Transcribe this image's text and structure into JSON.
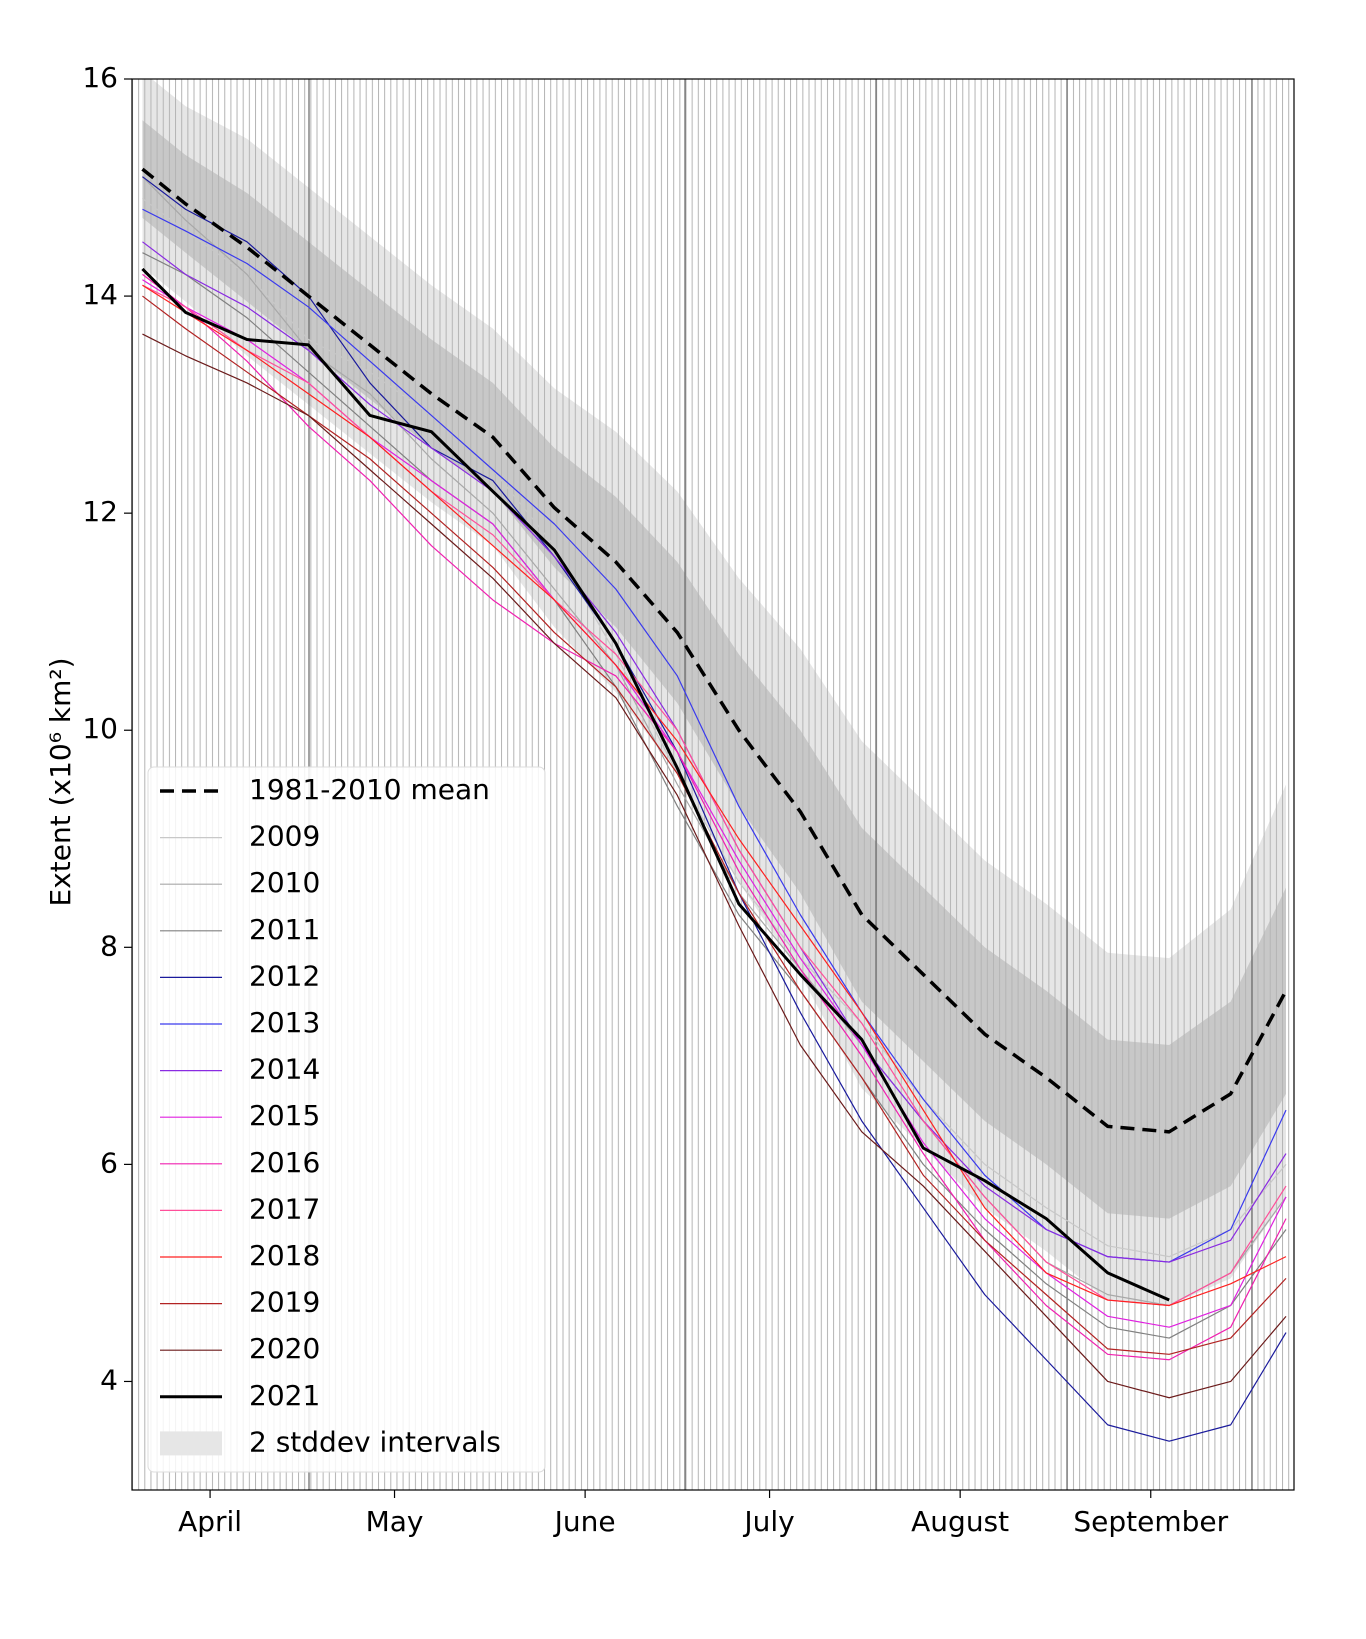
{
  "chart_data": {
    "type": "line",
    "y_label": "Extent (x10⁶ km²)",
    "x": [
      3,
      10,
      20,
      30,
      40,
      50,
      60,
      70,
      80,
      90,
      100,
      110,
      120,
      130,
      140,
      150,
      160,
      170,
      180,
      189
    ],
    "xlim": [
      1.3,
      190.3
    ],
    "xticks": [
      {
        "value": 14,
        "label": "April"
      },
      {
        "value": 44,
        "label": "May"
      },
      {
        "value": 75,
        "label": "June"
      },
      {
        "value": 105,
        "label": "July"
      },
      {
        "value": 136,
        "label": "August"
      },
      {
        "value": 167,
        "label": "September"
      }
    ],
    "ylim": [
      3.0,
      16
    ],
    "yticks": [
      4,
      6,
      8,
      10,
      12,
      14,
      16
    ],
    "legend": "lower left",
    "series": [
      {
        "name": "1981-2010 mean",
        "color": "#000000",
        "dash": true,
        "linewidth": 3.5,
        "values": [
          15.17,
          14.85,
          14.45,
          14.0,
          13.55,
          13.1,
          12.7,
          12.05,
          11.55,
          10.9,
          10.0,
          9.25,
          8.3,
          7.75,
          7.2,
          6.8,
          6.35,
          6.3,
          6.65,
          7.6
        ]
      },
      {
        "name": "2009",
        "color": "#c8c8c8",
        "linewidth": 1.2,
        "values": [
          14.9,
          14.6,
          14.2,
          13.6,
          13.3,
          12.9,
          12.4,
          11.7,
          10.7,
          9.6,
          8.6,
          7.9,
          7.3,
          6.6,
          6.0,
          5.6,
          5.25,
          5.15,
          5.4,
          6.0
        ]
      },
      {
        "name": "2010",
        "color": "#a8a8a8",
        "linewidth": 1.2,
        "values": [
          15.1,
          14.7,
          14.2,
          13.5,
          13.1,
          12.5,
          12.0,
          11.3,
          10.6,
          9.5,
          8.5,
          7.8,
          7.1,
          6.4,
          5.7,
          5.1,
          4.8,
          4.7,
          5.0,
          5.7
        ]
      },
      {
        "name": "2011",
        "color": "#808080",
        "linewidth": 1.2,
        "values": [
          14.4,
          14.2,
          13.8,
          13.3,
          12.8,
          12.3,
          11.9,
          11.2,
          10.4,
          9.3,
          8.3,
          7.6,
          6.8,
          6.0,
          5.4,
          4.9,
          4.5,
          4.4,
          4.7,
          5.4
        ]
      },
      {
        "name": "2012",
        "color": "#1a1a9c",
        "linewidth": 1.2,
        "values": [
          15.1,
          14.8,
          14.5,
          14.0,
          13.2,
          12.6,
          12.3,
          11.6,
          10.8,
          9.8,
          8.5,
          7.4,
          6.4,
          5.6,
          4.8,
          4.2,
          3.6,
          3.45,
          3.6,
          4.45
        ]
      },
      {
        "name": "2013",
        "color": "#3a3aee",
        "linewidth": 1.2,
        "values": [
          14.8,
          14.6,
          14.3,
          13.9,
          13.4,
          12.9,
          12.4,
          11.9,
          11.3,
          10.5,
          9.3,
          8.3,
          7.4,
          6.6,
          5.9,
          5.4,
          5.15,
          5.1,
          5.4,
          6.5
        ]
      },
      {
        "name": "2014",
        "color": "#8a2be2",
        "linewidth": 1.2,
        "values": [
          14.5,
          14.2,
          13.9,
          13.5,
          13.0,
          12.6,
          12.2,
          11.6,
          10.9,
          10.0,
          8.9,
          8.0,
          7.1,
          6.4,
          5.8,
          5.4,
          5.15,
          5.1,
          5.3,
          6.1
        ]
      },
      {
        "name": "2015",
        "color": "#e020e0",
        "linewidth": 1.2,
        "values": [
          14.15,
          13.9,
          13.6,
          13.2,
          12.7,
          12.3,
          11.9,
          11.2,
          10.6,
          9.8,
          8.8,
          7.9,
          7.1,
          6.2,
          5.5,
          5.0,
          4.6,
          4.5,
          4.7,
          5.7
        ]
      },
      {
        "name": "2016",
        "color": "#f020b0",
        "linewidth": 1.2,
        "values": [
          14.2,
          13.9,
          13.4,
          12.8,
          12.3,
          11.7,
          11.2,
          10.8,
          10.5,
          9.8,
          8.7,
          7.8,
          7.0,
          6.1,
          5.3,
          4.7,
          4.25,
          4.2,
          4.5,
          5.5
        ]
      },
      {
        "name": "2017",
        "color": "#ff4f9a",
        "linewidth": 1.2,
        "values": [
          14.1,
          13.9,
          13.5,
          13.2,
          12.7,
          12.2,
          11.8,
          11.2,
          10.7,
          10.0,
          8.9,
          8.0,
          7.3,
          6.4,
          5.7,
          5.1,
          4.75,
          4.7,
          5.0,
          5.8
        ]
      },
      {
        "name": "2018",
        "color": "#ff2020",
        "linewidth": 1.2,
        "values": [
          14.1,
          13.85,
          13.5,
          13.1,
          12.7,
          12.2,
          11.7,
          11.2,
          10.6,
          9.9,
          9.0,
          8.2,
          7.4,
          6.5,
          5.6,
          5.0,
          4.75,
          4.7,
          4.9,
          5.15
        ]
      },
      {
        "name": "2019",
        "color": "#b22222",
        "linewidth": 1.2,
        "values": [
          14.0,
          13.7,
          13.3,
          12.9,
          12.5,
          12.0,
          11.5,
          10.9,
          10.4,
          9.6,
          8.5,
          7.6,
          6.8,
          5.9,
          5.3,
          4.8,
          4.3,
          4.25,
          4.4,
          4.95
        ]
      },
      {
        "name": "2020",
        "color": "#6b1a1a",
        "linewidth": 1.2,
        "values": [
          13.65,
          13.45,
          13.2,
          12.9,
          12.4,
          11.9,
          11.4,
          10.8,
          10.3,
          9.4,
          8.2,
          7.1,
          6.3,
          5.8,
          5.2,
          4.6,
          4.0,
          3.85,
          4.0,
          4.6
        ]
      },
      {
        "name": "2021",
        "color": "#000000",
        "linewidth": 3,
        "values": [
          14.25,
          13.85,
          13.6,
          13.55,
          12.9,
          12.75,
          12.2,
          11.66,
          10.8,
          9.65,
          8.4,
          7.75,
          7.15,
          6.15,
          5.85,
          5.5,
          5.0,
          4.75,
          null,
          null
        ]
      }
    ],
    "band": {
      "name": "2 stddev intervals",
      "outer_color": "#e6e6e6",
      "inner_color": "#c8c8c8",
      "outer_upper": [
        16.07,
        15.75,
        15.45,
        15.0,
        14.55,
        14.1,
        13.7,
        13.15,
        12.75,
        12.2,
        11.4,
        10.75,
        9.9,
        9.35,
        8.8,
        8.4,
        7.95,
        7.9,
        8.35,
        9.5
      ],
      "outer_lower": [
        14.27,
        13.95,
        13.45,
        13.0,
        12.55,
        12.1,
        11.7,
        10.95,
        10.35,
        9.6,
        8.6,
        7.75,
        6.7,
        6.15,
        5.6,
        5.2,
        4.75,
        4.7,
        4.95,
        5.7
      ],
      "inner_upper": [
        15.62,
        15.3,
        14.95,
        14.5,
        14.05,
        13.6,
        13.2,
        12.6,
        12.15,
        11.55,
        10.7,
        10.0,
        9.1,
        8.55,
        8.0,
        7.6,
        7.15,
        7.1,
        7.5,
        8.55
      ],
      "inner_lower": [
        14.72,
        14.4,
        13.95,
        13.5,
        13.05,
        12.6,
        12.2,
        11.5,
        10.95,
        10.25,
        9.3,
        8.5,
        7.5,
        6.95,
        6.4,
        6.0,
        5.55,
        5.5,
        5.8,
        6.65
      ]
    }
  }
}
